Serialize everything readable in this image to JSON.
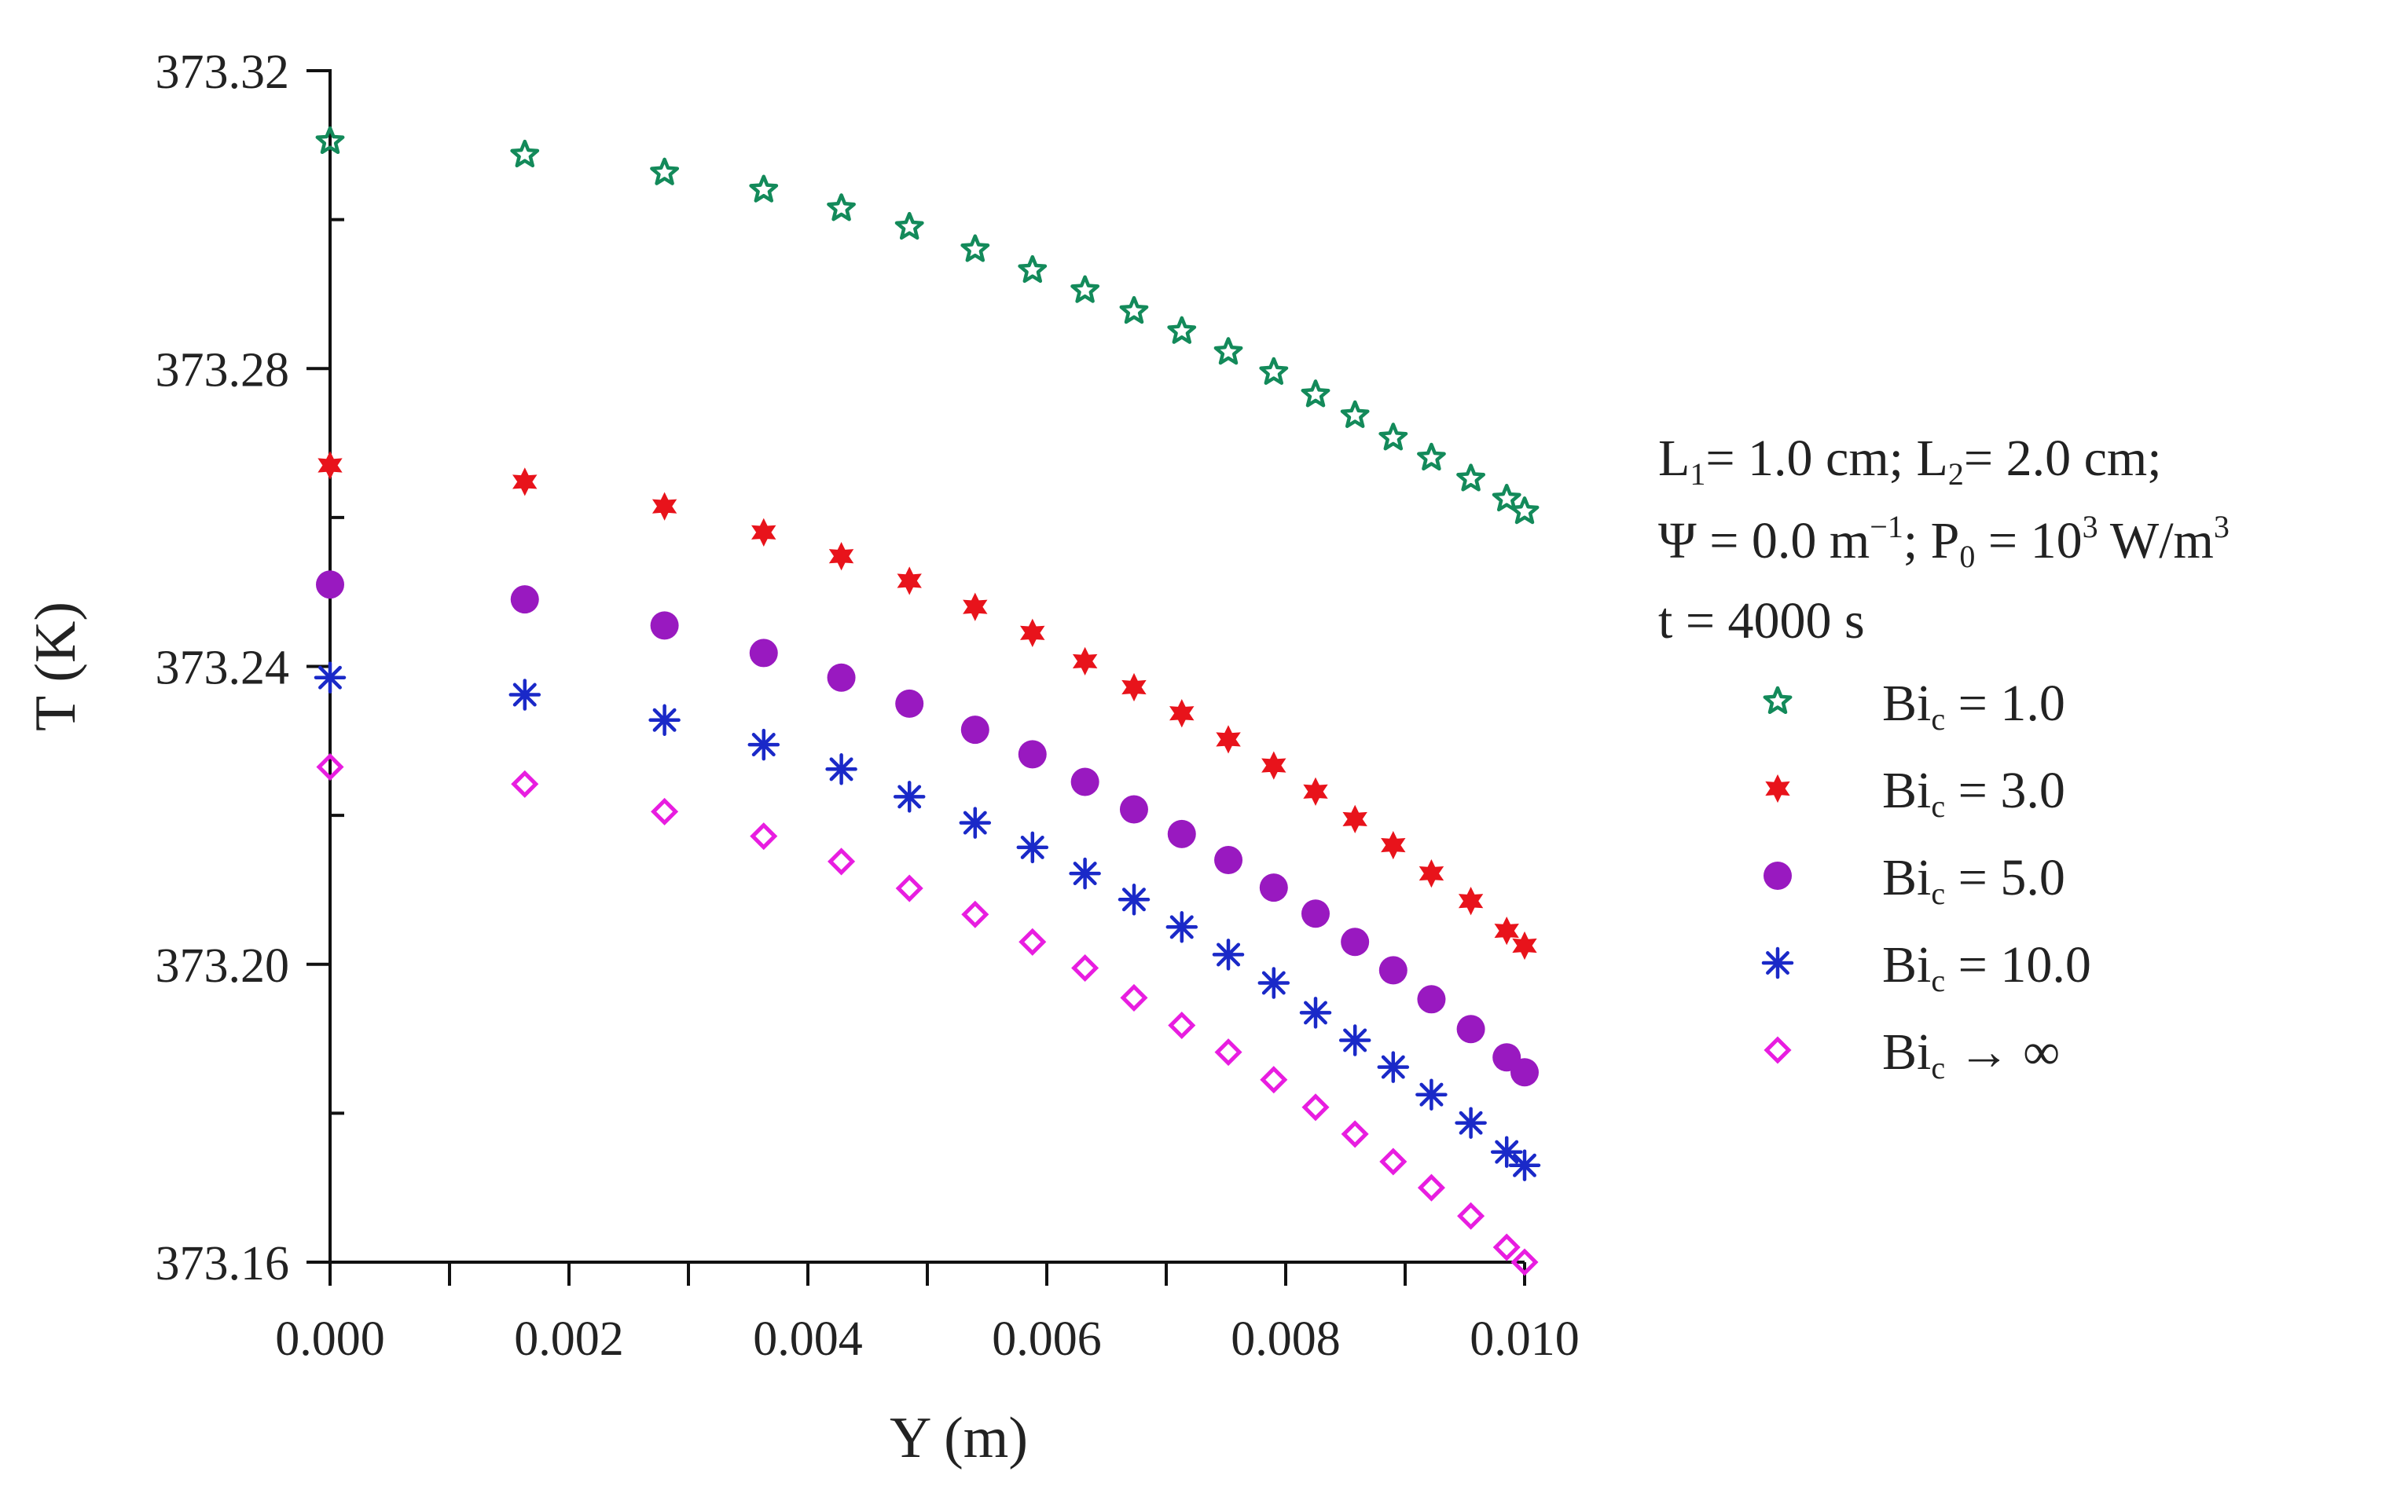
{
  "chart_data": {
    "type": "scatter",
    "title": "",
    "xlabel": "Y (m)",
    "ylabel": "T (K)",
    "xlim": [
      0.0,
      0.01
    ],
    "ylim": [
      373.16,
      373.32
    ],
    "x_ticks": [
      "0.000",
      "0.002",
      "0.004",
      "0.006",
      "0.008",
      "0.010"
    ],
    "y_ticks": [
      "373.16",
      "373.20",
      "373.24",
      "373.28",
      "373.32"
    ],
    "grid": false,
    "legend_position": "right",
    "annotation": {
      "line1": {
        "L1_base": "L",
        "L1_sub": "1",
        "L1_value": "= 1.0 cm; ",
        "L2_base": "L",
        "L2_sub": "2",
        "L2_value": "= 2.0 cm;"
      },
      "line2": {
        "psi": "Ψ = 0.0 m",
        "psi_sup": "−1",
        "p_base": "; P",
        "p_sub": "0",
        "p_value": " = 10",
        "p_sup": "3",
        "p_unit": " W/m",
        "unit_sup": "3"
      },
      "line3": "t = 4000 s"
    },
    "x": [
      0.0,
      0.00163,
      0.0028,
      0.00363,
      0.00428,
      0.00485,
      0.0054,
      0.00588,
      0.00632,
      0.00673,
      0.00713,
      0.00752,
      0.0079,
      0.00825,
      0.00858,
      0.0089,
      0.00922,
      0.00955,
      0.00985,
      0.01
    ],
    "series": [
      {
        "name": "Bic = 1.0",
        "legend_base": "Bi",
        "legend_sub": "c",
        "legend_rest": " = 1.0",
        "marker": "open-star",
        "color": "#138a5a",
        "values": [
          373.3105,
          373.3087,
          373.3063,
          373.304,
          373.3015,
          373.299,
          373.296,
          373.2932,
          373.2905,
          373.2877,
          373.285,
          373.2822,
          373.2795,
          373.2765,
          373.2737,
          373.2707,
          373.268,
          373.2652,
          373.2625,
          373.2608
        ]
      },
      {
        "name": "Bic = 3.0",
        "legend_base": "Bi",
        "legend_sub": "c",
        "legend_rest": " = 3.0",
        "marker": "filled-star",
        "color": "#e8131b",
        "values": [
          373.267,
          373.2648,
          373.2615,
          373.258,
          373.2548,
          373.2515,
          373.248,
          373.2445,
          373.2407,
          373.2372,
          373.2337,
          373.2302,
          373.2267,
          373.2232,
          373.2195,
          373.216,
          373.2122,
          373.2085,
          373.2045,
          373.2025
        ]
      },
      {
        "name": "Bic = 5.0",
        "legend_base": "Bi",
        "legend_sub": "c",
        "legend_rest": " = 5.0",
        "marker": "filled-circle",
        "color": "#9919c0",
        "values": [
          373.251,
          373.249,
          373.2455,
          373.2418,
          373.2385,
          373.235,
          373.2315,
          373.2282,
          373.2245,
          373.2208,
          373.2175,
          373.214,
          373.2103,
          373.2068,
          373.203,
          373.1992,
          373.1953,
          373.1913,
          373.1875,
          373.1855
        ]
      },
      {
        "name": "Bic = 10.0",
        "legend_base": "Bi",
        "legend_sub": "c",
        "legend_rest": " = 10.0",
        "marker": "asterisk",
        "color": "#1a29c8",
        "values": [
          373.2385,
          373.2362,
          373.2328,
          373.2295,
          373.2262,
          373.2225,
          373.219,
          373.2157,
          373.2122,
          373.2087,
          373.205,
          373.2013,
          373.1975,
          373.1935,
          373.1898,
          373.1862,
          373.1825,
          373.1787,
          373.1748,
          373.173
        ]
      },
      {
        "name": "Bic → ∞",
        "legend_base": "Bi",
        "legend_sub": "c",
        "legend_rest": " → ∞",
        "marker": "open-diamond",
        "color": "#e81de0",
        "values": [
          373.2265,
          373.2242,
          373.2205,
          373.2172,
          373.2138,
          373.2102,
          373.2067,
          373.203,
          373.1995,
          373.1955,
          373.1918,
          373.1882,
          373.1845,
          373.1808,
          373.1772,
          373.1735,
          373.17,
          373.1662,
          373.162,
          373.16
        ]
      }
    ]
  }
}
